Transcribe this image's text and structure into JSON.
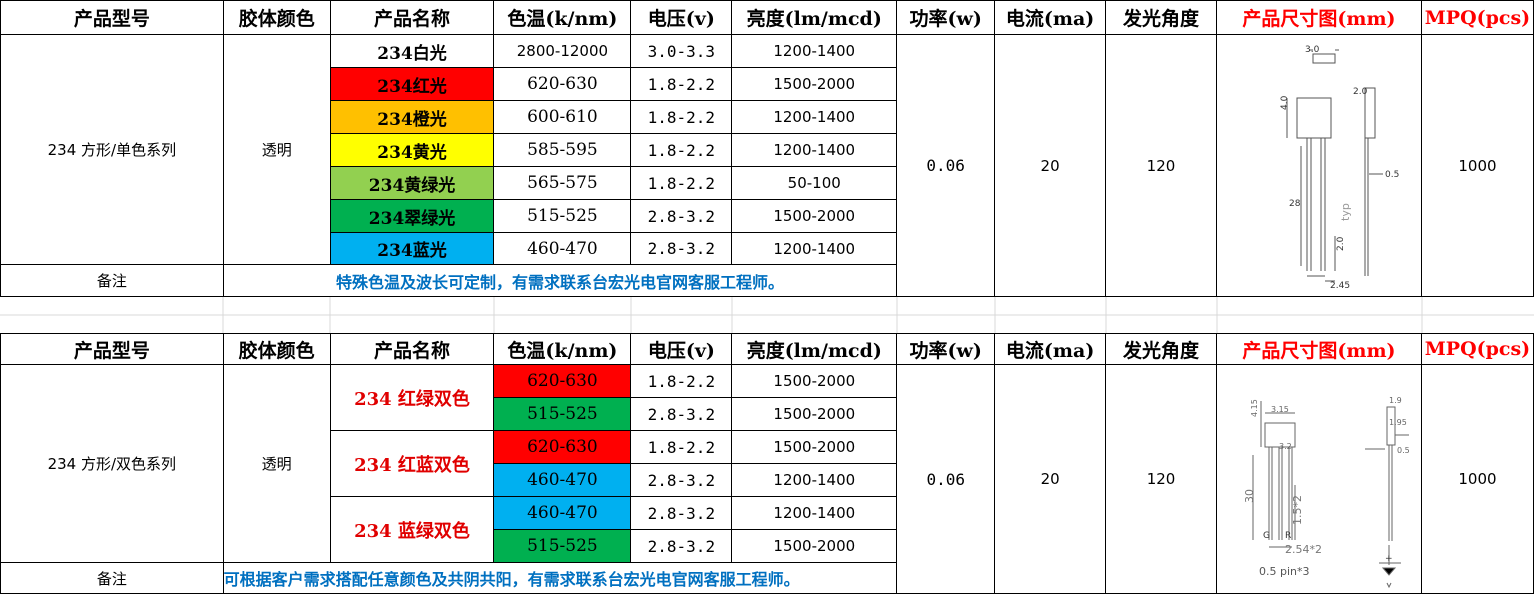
{
  "headers": {
    "model": "产品型号",
    "body_color": "胶体颜色",
    "name": "产品名称",
    "color_temp": "色温(k/nm)",
    "voltage": "电压(v)",
    "brightness": "亮度(lm/mcd)",
    "power": "功率(w)",
    "current": "电流(ma)",
    "angle": "发光角度",
    "size_diagram": "产品尺寸图(mm)",
    "mpq": "MPQ(pcs)"
  },
  "section1": {
    "model": "234 方形/单色系列",
    "body_color": "透明",
    "power": "0.06",
    "current": "20",
    "angle": "120",
    "mpq": "1000",
    "note_label": "备注",
    "note": "特殊色温及波长可定制，有需求联系台宏光电官网客服工程师。",
    "rows": [
      {
        "name": "234白光",
        "color": "",
        "temp": "2800-12000",
        "voltage": "3.0-3.3",
        "brightness": "1200-1400"
      },
      {
        "name": "234红光",
        "color": "#ff0000",
        "temp": "620-630",
        "voltage": "1.8-2.2",
        "brightness": "1500-2000"
      },
      {
        "name": "234橙光",
        "color": "#ffc000",
        "temp": "600-610",
        "voltage": "1.8-2.2",
        "brightness": "1200-1400"
      },
      {
        "name": "234黄光",
        "color": "#ffff00",
        "temp": "585-595",
        "voltage": "1.8-2.2",
        "brightness": "1200-1400"
      },
      {
        "name": "234黄绿光",
        "color": "#92d050",
        "temp": "565-575",
        "voltage": "1.8-2.2",
        "brightness": "50-100"
      },
      {
        "name": "234翠绿光",
        "color": "#00b050",
        "temp": "515-525",
        "voltage": "2.8-3.2",
        "brightness": "1500-2000"
      },
      {
        "name": "234蓝光",
        "color": "#00b0f0",
        "temp": "460-470",
        "voltage": "2.8-3.2",
        "brightness": "1200-1400"
      }
    ],
    "diagram": {
      "d_top": "3.0",
      "d_height": "4.0",
      "d_side": "2.0",
      "d_lead": "28",
      "d_typ": "typ",
      "d_pitch": "2.0",
      "d_pin": "0.5",
      "d_span": "2.45"
    }
  },
  "section2": {
    "model": "234 方形/双色系列",
    "body_color": "透明",
    "power": "0.06",
    "current": "20",
    "angle": "120",
    "mpq": "1000",
    "note_label": "备注",
    "note": "可根据客户需求搭配任意颜色及共阴共阳，有需求联系台宏光电官网客服工程师。",
    "groups": [
      {
        "name": "234 红绿双色",
        "rows": [
          {
            "temp": "620-630",
            "color": "#ff0000",
            "voltage": "1.8-2.2",
            "brightness": "1500-2000"
          },
          {
            "temp": "515-525",
            "color": "#00b050",
            "voltage": "2.8-3.2",
            "brightness": "1500-2000"
          }
        ]
      },
      {
        "name": "234 红蓝双色",
        "rows": [
          {
            "temp": "620-630",
            "color": "#ff0000",
            "voltage": "1.8-2.2",
            "brightness": "1500-2000"
          },
          {
            "temp": "460-470",
            "color": "#00b0f0",
            "voltage": "2.8-3.2",
            "brightness": "1200-1400"
          }
        ]
      },
      {
        "name": "234 蓝绿双色",
        "rows": [
          {
            "temp": "460-470",
            "color": "#00b0f0",
            "voltage": "2.8-3.2",
            "brightness": "1200-1400"
          },
          {
            "temp": "515-525",
            "color": "#00b050",
            "voltage": "2.8-3.2",
            "brightness": "1500-2000"
          }
        ]
      }
    ],
    "diagram": {
      "d_h": "4.15",
      "d_w": "3.15",
      "d_w2": "3.2",
      "d_side1": "1.9",
      "d_side2": "1.95",
      "d_lead": "30",
      "d_pitch": "1.5*2",
      "d_g": "G",
      "d_r": "R",
      "d_span": "2.54*2",
      "d_pin": "0.5",
      "d_pinlabel": "0.5 pin*3",
      "d_plus": "+"
    }
  }
}
